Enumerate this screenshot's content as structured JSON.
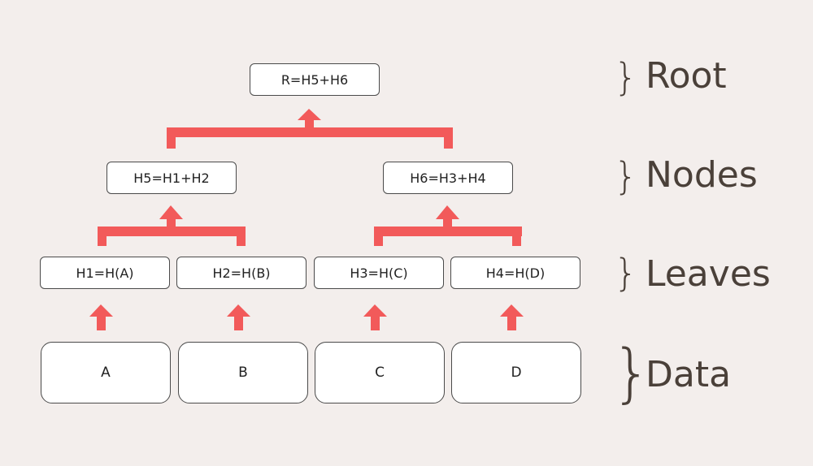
{
  "colors": {
    "arrow": "#f25a5a",
    "text": "#4a4039",
    "box_border": "#4a4a4a"
  },
  "root": {
    "label": "R=H5+H6"
  },
  "nodes": [
    {
      "label": "H5=H1+H2"
    },
    {
      "label": "H6=H3+H4"
    }
  ],
  "leaves": [
    {
      "label": "H1=H(A)"
    },
    {
      "label": "H2=H(B)"
    },
    {
      "label": "H3=H(C)"
    },
    {
      "label": "H4=H(D)"
    }
  ],
  "data_blocks": [
    {
      "label": "A"
    },
    {
      "label": "B"
    },
    {
      "label": "C"
    },
    {
      "label": "D"
    }
  ],
  "levels": {
    "brace": "}",
    "root": "Root",
    "nodes": "Nodes",
    "leaves": "Leaves",
    "data": "Data"
  }
}
